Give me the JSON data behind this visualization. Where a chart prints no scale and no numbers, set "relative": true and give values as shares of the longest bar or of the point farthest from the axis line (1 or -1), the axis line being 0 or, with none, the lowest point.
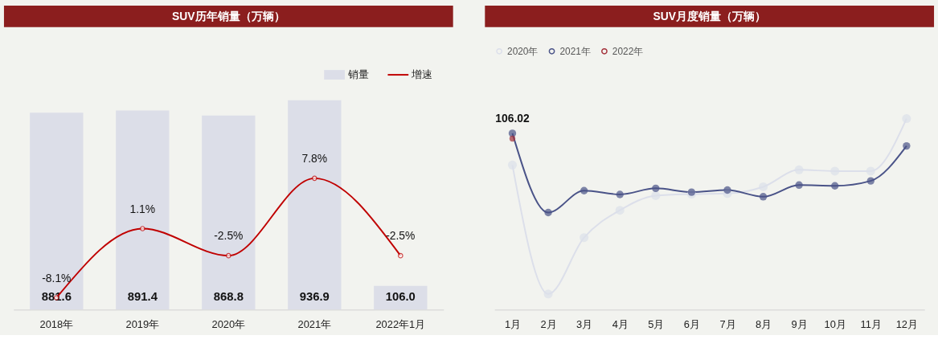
{
  "chart_data": [
    {
      "type": "bar",
      "title": "SUV历年销量（万辆）",
      "categories": [
        "2018年",
        "2019年",
        "2020年",
        "2021年",
        "2022年1月"
      ],
      "legend": "top right",
      "marker": "circle",
      "series": [
        {
          "name": "销量",
          "type": "bar",
          "color": "#dcdee8",
          "values": [
            881.6,
            891.4,
            868.8,
            936.9,
            106.0
          ],
          "value_labels": [
            "881.6",
            "891.4",
            "868.8",
            "936.9",
            "106.0"
          ]
        },
        {
          "name": "增速",
          "type": "line",
          "axis": "y2",
          "color": "#c00000",
          "values": [
            -8.1,
            1.1,
            -2.5,
            7.8,
            -2.5
          ],
          "value_labels": [
            "-8.1%",
            "1.1%",
            "-2.5%",
            "7.8%",
            "-2.5%"
          ]
        }
      ]
    },
    {
      "type": "line",
      "title": "SUV月度销量（万辆）",
      "categories": [
        "1月",
        "2月",
        "3月",
        "4月",
        "5月",
        "6月",
        "7月",
        "8月",
        "9月",
        "10月",
        "11月",
        "12月"
      ],
      "relative": true,
      "legend": "top",
      "marker": "circle",
      "line_style": "solid",
      "series": [
        {
          "name": "2020年",
          "color": "#dcdfea",
          "values": [
            0.757,
            0.082,
            0.377,
            0.52,
            0.597,
            0.605,
            0.608,
            0.643,
            0.732,
            0.725,
            0.725,
            1
          ]
        },
        {
          "name": "2021年",
          "color": "#4a5388",
          "values": [
            0.923,
            0.508,
            0.623,
            0.603,
            0.635,
            0.615,
            0.626,
            0.591,
            0.652,
            0.648,
            0.674,
            0.857
          ]
        },
        {
          "name": "2022年",
          "color": "#a3303a",
          "values": [
            0.895,
            null,
            null,
            null,
            null,
            null,
            null,
            null,
            null,
            null,
            null,
            null
          ]
        }
      ],
      "annotations": [
        {
          "text": "106.02",
          "x": "1月",
          "y": 0.923
        }
      ]
    }
  ]
}
